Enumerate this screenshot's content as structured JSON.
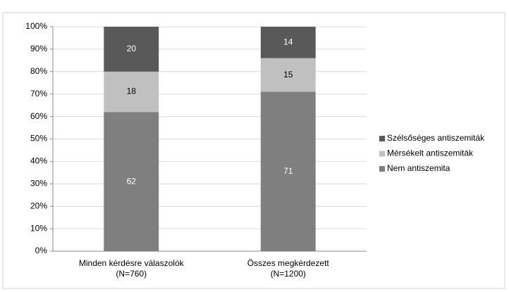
{
  "chart_data": {
    "type": "stacked_bar",
    "categories": [
      "Minden kérdésre válaszolók\n(N=760)",
      "Összes megkérdezett\n(N=1200)"
    ],
    "series": [
      {
        "name": "Nem antiszemita",
        "color": "#7f7f7f",
        "values": [
          62,
          71
        ]
      },
      {
        "name": "Mérsékelt antiszemiták",
        "color": "#c0c0c0",
        "values": [
          18,
          15
        ]
      },
      {
        "name": "Szélsőséges antiszemiták",
        "color": "#595959",
        "values": [
          20,
          14
        ]
      }
    ],
    "ylim": [
      0,
      100
    ],
    "yticks": [
      {
        "value": 0,
        "label": "0%"
      },
      {
        "value": 10,
        "label": "10%"
      },
      {
        "value": 20,
        "label": "20%"
      },
      {
        "value": 30,
        "label": "30%"
      },
      {
        "value": 40,
        "label": "40%"
      },
      {
        "value": 50,
        "label": "50%"
      },
      {
        "value": 60,
        "label": "60%"
      },
      {
        "value": 70,
        "label": "70%"
      },
      {
        "value": 80,
        "label": "80%"
      },
      {
        "value": 90,
        "label": "90%"
      },
      {
        "value": 100,
        "label": "100%"
      }
    ],
    "grid": true,
    "legend": "right"
  }
}
